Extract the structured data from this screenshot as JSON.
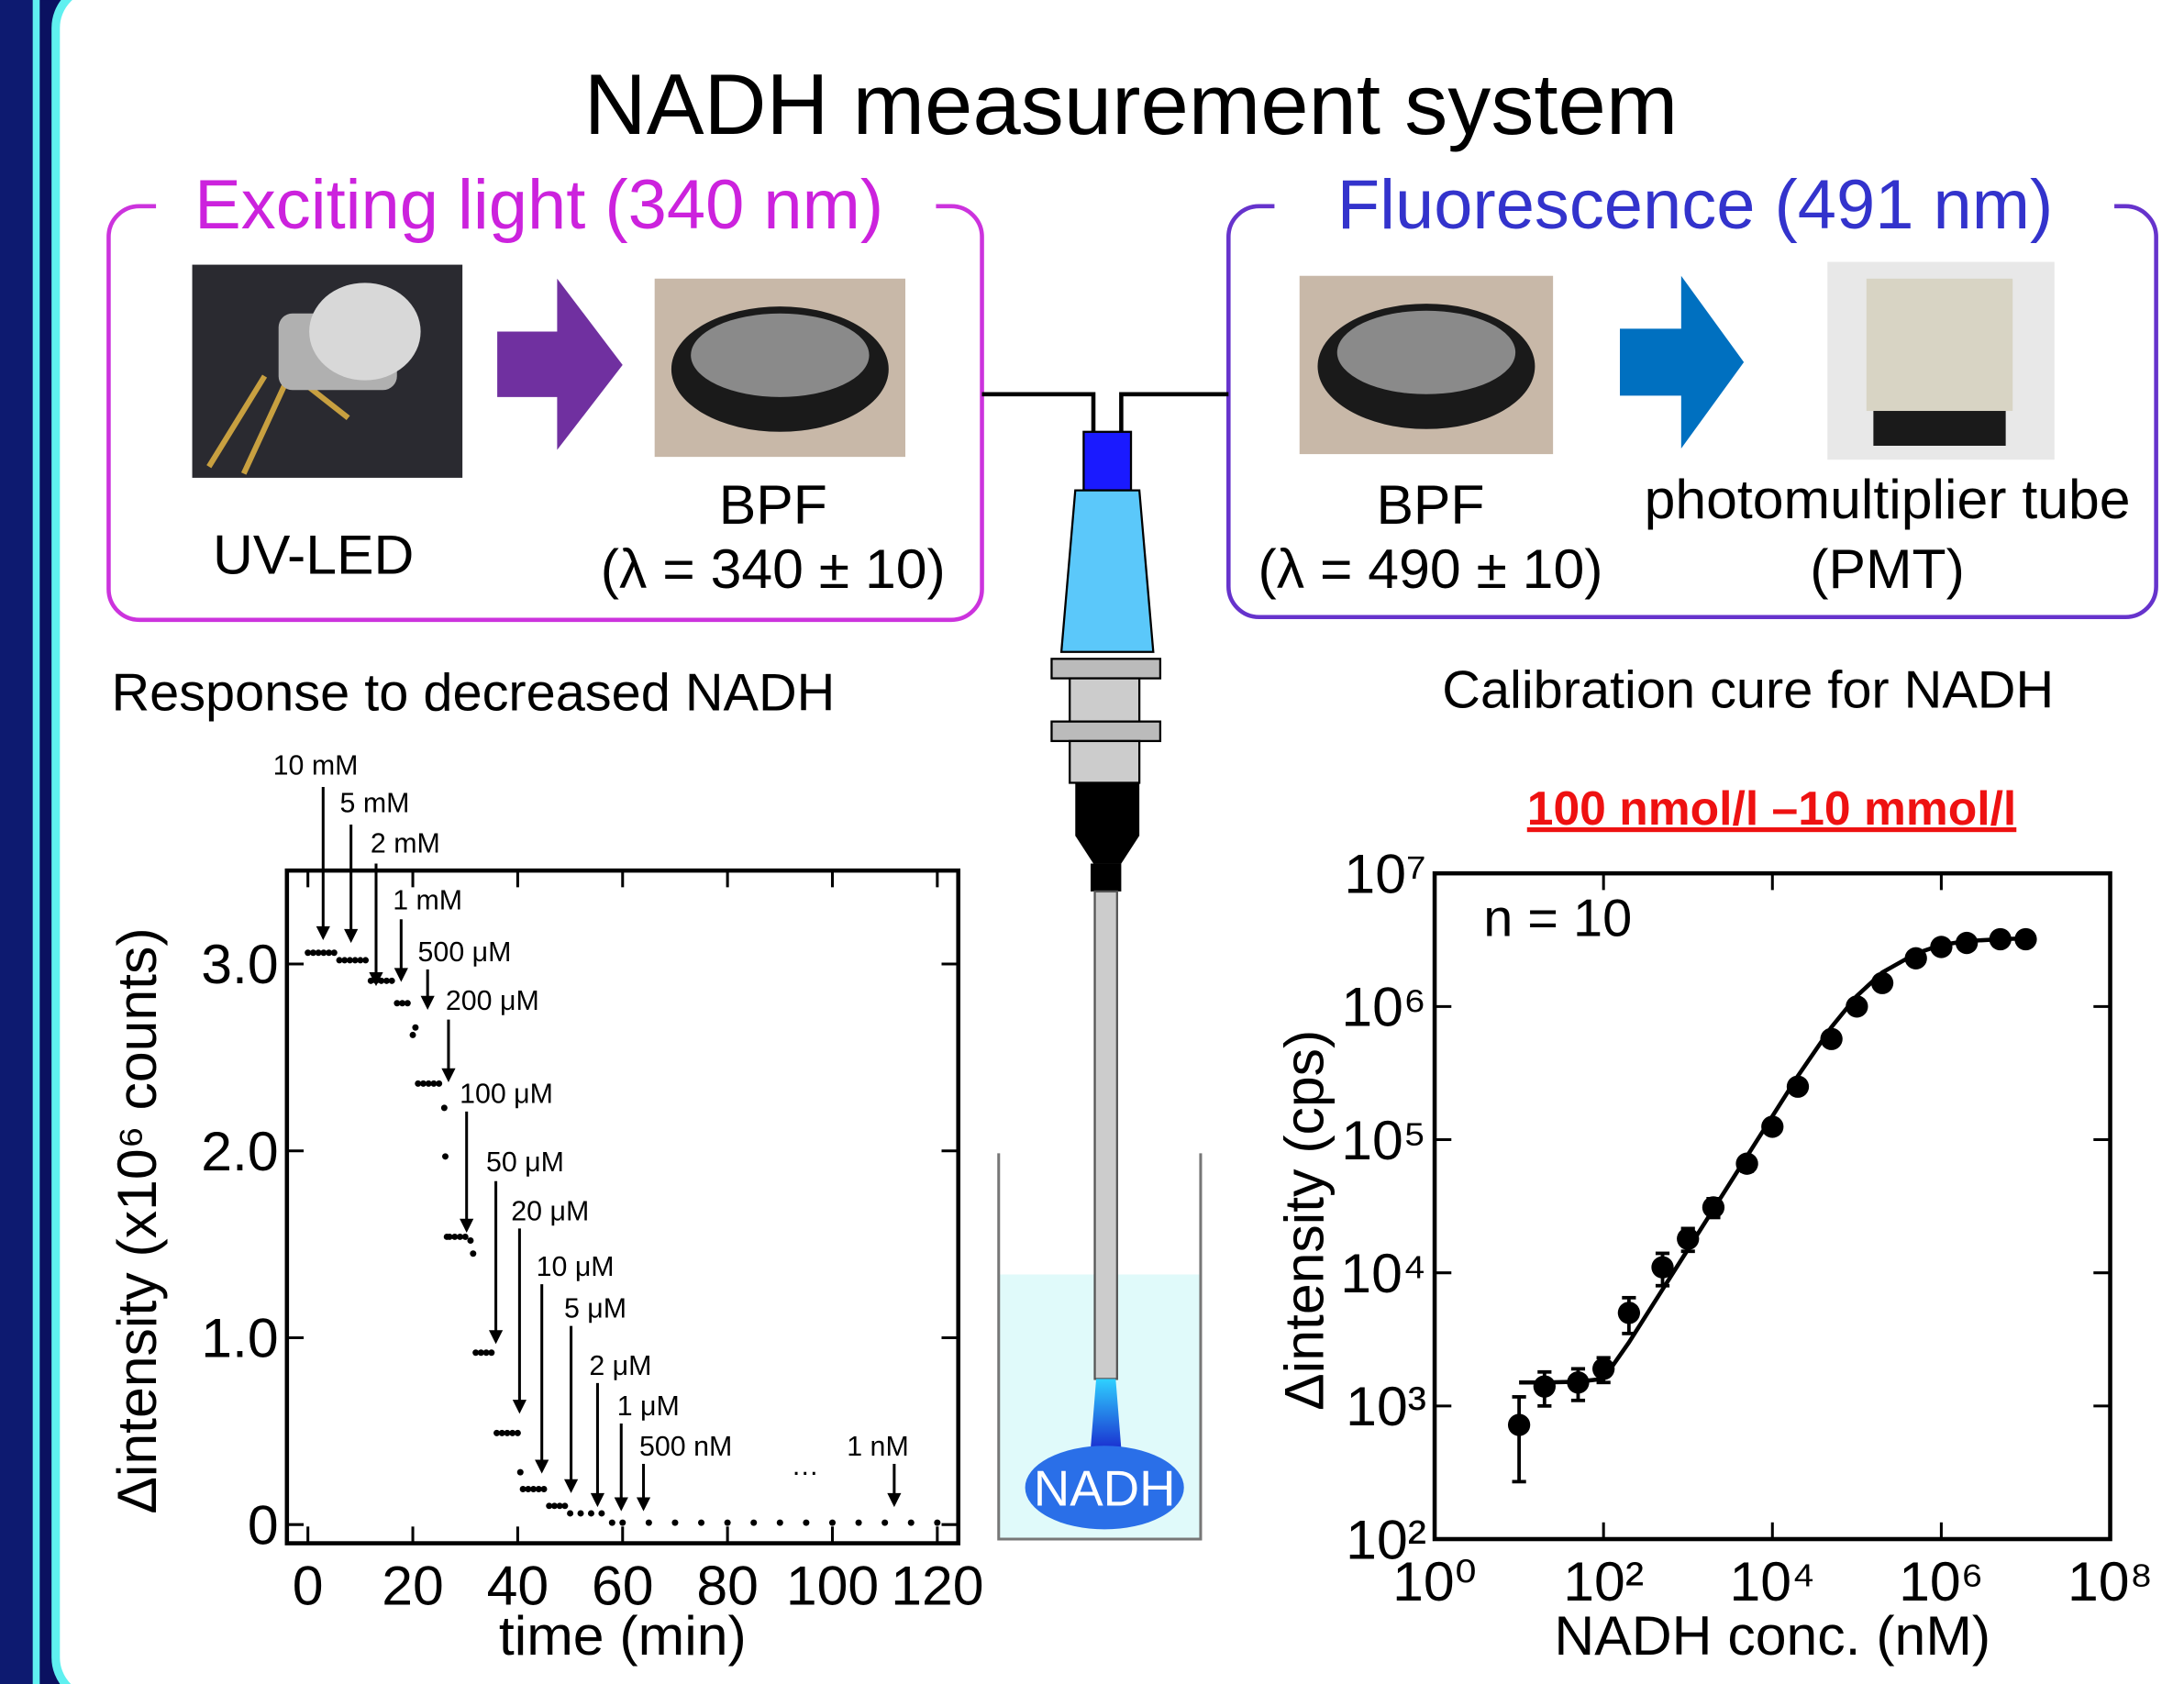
{
  "title": "NADH measurement system",
  "excitation": {
    "heading": "Exciting light (340 nm)",
    "source": "UV-LED",
    "filter": "BPF",
    "filter_band": "(λ = 340 ± 10)"
  },
  "fluorescence": {
    "heading": "Fluorescence (491 nm)",
    "filter": "BPF",
    "filter_band": "(λ = 490 ± 10)",
    "detector": "photomultiplier tube",
    "detector_abbr": "(PMT)"
  },
  "sample_label": "NADH",
  "chart_data": [
    {
      "type": "scatter",
      "title": "Response to decreased NADH",
      "xlabel": "time (min)",
      "ylabel": "Δintensity (x10⁶ counts)",
      "color": "#000000",
      "x": [
        0,
        1,
        2,
        3,
        4,
        5,
        6,
        7,
        8,
        9,
        10,
        11,
        12,
        13,
        14,
        15,
        16,
        17,
        18,
        19,
        20,
        20.5,
        21,
        22,
        23,
        24,
        25,
        26,
        26.2,
        26.5,
        27,
        28,
        29,
        30,
        31,
        31.5,
        32,
        33,
        34,
        35,
        36,
        37,
        38,
        39,
        40,
        40.5,
        41,
        42,
        43,
        44,
        45,
        46,
        47,
        48,
        49,
        50,
        52,
        54,
        56,
        58,
        60,
        65,
        70,
        75,
        80,
        85,
        90,
        95,
        100,
        105,
        110,
        115,
        120
      ],
      "values": [
        3.06,
        3.06,
        3.06,
        3.06,
        3.06,
        3.06,
        3.02,
        3.02,
        3.02,
        3.02,
        3.02,
        3.02,
        2.91,
        2.91,
        2.91,
        2.91,
        2.91,
        2.79,
        2.79,
        2.79,
        2.62,
        2.66,
        2.36,
        2.36,
        2.36,
        2.36,
        2.36,
        2.23,
        1.97,
        1.54,
        1.54,
        1.54,
        1.54,
        1.54,
        1.52,
        1.45,
        0.92,
        0.92,
        0.92,
        0.92,
        0.49,
        0.49,
        0.49,
        0.49,
        0.49,
        0.28,
        0.19,
        0.19,
        0.19,
        0.19,
        0.19,
        0.1,
        0.1,
        0.1,
        0.1,
        0.06,
        0.06,
        0.06,
        0.06,
        0.01,
        0.01,
        0.01,
        0.01,
        0.01,
        0.01,
        0.01,
        0.01,
        0.01,
        0.01,
        0.01,
        0.01,
        0.01,
        0.01
      ],
      "xlim": [
        -4,
        124
      ],
      "ylim": [
        -0.1,
        3.5
      ],
      "xticks": [
        0,
        20,
        40,
        60,
        80,
        100,
        120
      ],
      "yticks": [
        0,
        {
          "value": 1,
          "label": "1.0"
        },
        {
          "value": 2,
          "label": "2.0"
        },
        {
          "value": 3,
          "label": "3.0"
        }
      ],
      "annotations": [
        "10 mM",
        "5 mM",
        "2 mM",
        "1 mM",
        "500 μM",
        "200 μM",
        "100 μM",
        "50 μM",
        "20 μM",
        "10 μM",
        "5 μM",
        "2 μM",
        "1 μM",
        "500 nM",
        "…",
        "1 nM"
      ]
    },
    {
      "type": "scatter",
      "title": "Calibration cure for NADH",
      "subtitle": "100 nmol/l –10 mmol/l",
      "annotation": "n = 10",
      "xlabel": "NADH conc. (nM)",
      "ylabel": "Δintensity (cps)",
      "color": "#000000",
      "xlog": true,
      "ylog": true,
      "x": [
        10,
        20,
        50,
        100,
        200,
        500,
        1000,
        2000,
        5000,
        10000,
        20000,
        50000,
        100000,
        200000,
        500000,
        1000000,
        2000000,
        5000000,
        10000000
      ],
      "values": [
        720,
        1400,
        1500,
        1900,
        5000,
        11000,
        18000,
        31000,
        66000,
        125000,
        250000,
        570000,
        1000000,
        1500000,
        2300000,
        2800000,
        3000000,
        3200000,
        3200000
      ],
      "errors": [
        450,
        400,
        400,
        400,
        1500,
        3000,
        3500,
        5000,
        8000,
        12000,
        25000,
        50000,
        80000,
        100000,
        150000,
        150000,
        150000,
        150000,
        150000
      ],
      "fit_x": [
        10,
        20,
        50,
        100,
        200,
        500,
        1000,
        2000,
        5000,
        10000,
        20000,
        50000,
        100000,
        200000,
        500000,
        1000000,
        2000000,
        5000000,
        10000000
      ],
      "fit_values": [
        1500,
        1500,
        1520,
        1600,
        3000,
        7500,
        15000,
        30000,
        75000,
        150000,
        300000,
        700000,
        1200000,
        1800000,
        2500000,
        2900000,
        3100000,
        3200000,
        3250000
      ],
      "xlim": [
        1,
        100000000
      ],
      "ylim": [
        100,
        10000000
      ],
      "xticks": [
        {
          "value": 1,
          "label": "10⁰"
        },
        {
          "value": 100,
          "label": "10²"
        },
        {
          "value": 10000,
          "label": "10⁴"
        },
        {
          "value": 1000000,
          "label": "10⁶"
        },
        {
          "value": 100000000,
          "label": "10⁸"
        }
      ],
      "yticks": [
        {
          "value": 100,
          "label": "10²"
        },
        {
          "value": 1000,
          "label": "10³"
        },
        {
          "value": 10000,
          "label": "10⁴"
        },
        {
          "value": 100000,
          "label": "10⁵"
        },
        {
          "value": 1000000,
          "label": "10⁶"
        },
        {
          "value": 10000000,
          "label": "10⁷"
        }
      ]
    }
  ]
}
